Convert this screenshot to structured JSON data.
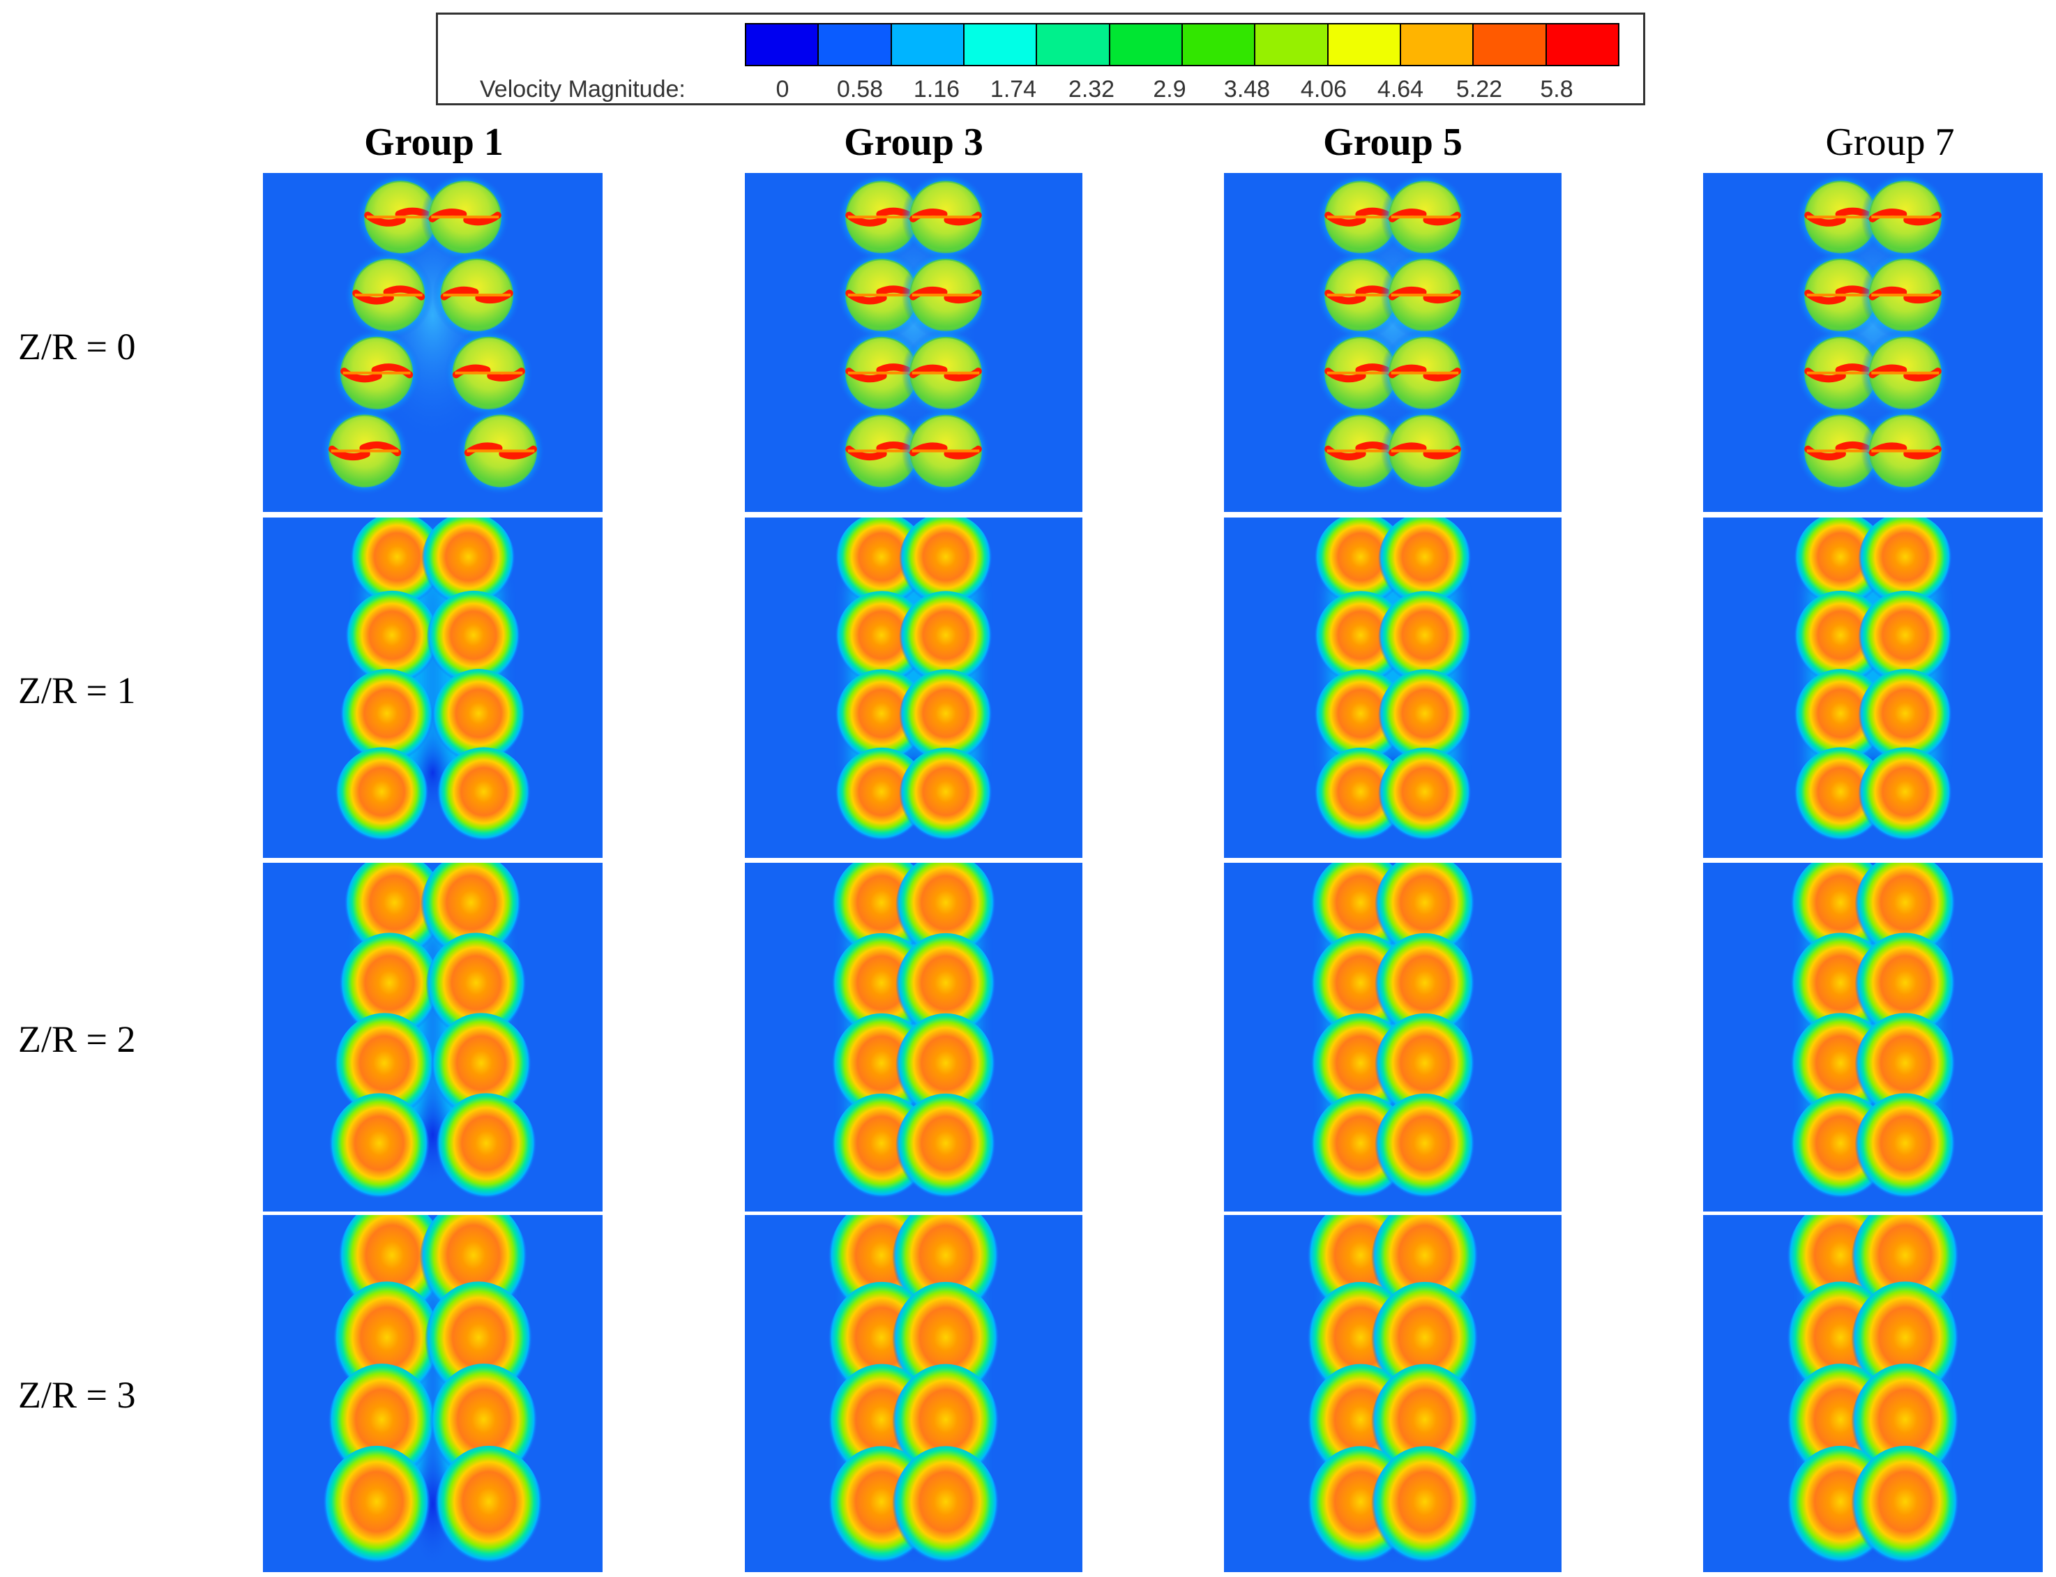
{
  "legend": {
    "title": "Velocity Magnitude:",
    "ticks": [
      "0",
      "0.58",
      "1.16",
      "1.74",
      "2.32",
      "2.9",
      "3.48",
      "4.06",
      "4.64",
      "5.22",
      "5.8"
    ],
    "colors": [
      "#0000f0",
      "#0a5cff",
      "#00b4ff",
      "#00ffe6",
      "#00f08c",
      "#00e632",
      "#32e600",
      "#96f000",
      "#f0ff00",
      "#ffb400",
      "#ff5a00",
      "#ff0000"
    ]
  },
  "groups": [
    {
      "label": "Group 1",
      "bold": true
    },
    {
      "label": "Group 3",
      "bold": true
    },
    {
      "label": "Group 5",
      "bold": true
    },
    {
      "label": "Group 7",
      "bold": false
    }
  ],
  "rows": [
    {
      "label": "Z/R = 0"
    },
    {
      "label": "Z/R = 1"
    },
    {
      "label": "Z/R = 2"
    },
    {
      "label": "Z/R = 3"
    }
  ],
  "colors": {
    "background_field": "#1464f4",
    "wake_core": "#ff7a00",
    "wake_ring": "#00e6c8",
    "rotor_disk": "#b4e632",
    "blade_high": "#ff1a00"
  }
}
